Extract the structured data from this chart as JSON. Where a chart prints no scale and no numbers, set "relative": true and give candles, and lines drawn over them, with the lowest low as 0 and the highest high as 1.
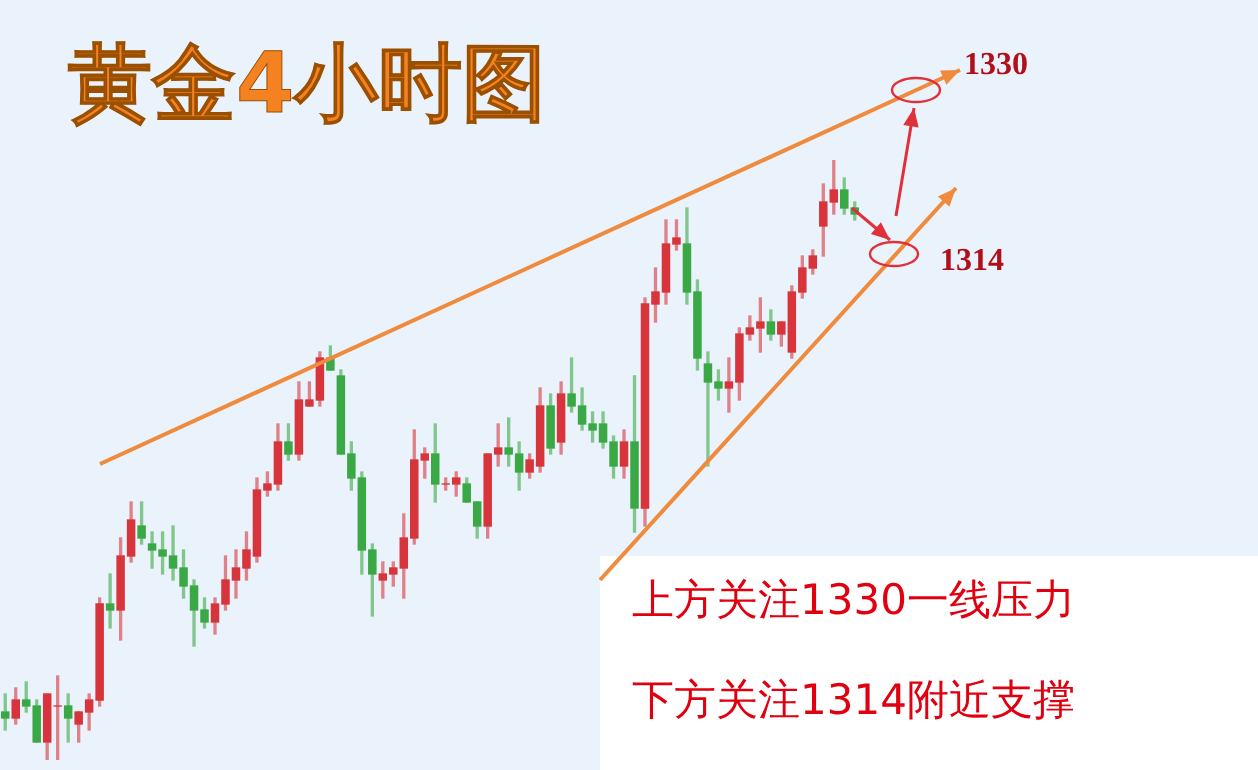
{
  "chart_data": {
    "type": "candlestick",
    "title": "黄金4小时图",
    "relative": true,
    "annotations": [
      "1330",
      "1314",
      "上方关注1330一线压力",
      "下方关注1314附近支撑"
    ],
    "categories": [
      null,
      null,
      null,
      null,
      null,
      null,
      null,
      null,
      null,
      null,
      null,
      null,
      null,
      null,
      null,
      null,
      null,
      null,
      null,
      null,
      null,
      null,
      null,
      null,
      null,
      null,
      null,
      null,
      null,
      null,
      null,
      null,
      null,
      null,
      null,
      null,
      null,
      null,
      null,
      null,
      null,
      null,
      null,
      null,
      null,
      null,
      null,
      null,
      null,
      null,
      null,
      null,
      null,
      null,
      null,
      null,
      null,
      null,
      null,
      null,
      null,
      null,
      null,
      null,
      null,
      null,
      null,
      null,
      null,
      null,
      null,
      null,
      null,
      null,
      null,
      null,
      null,
      null,
      null,
      null,
      null,
      null
    ],
    "ohlc": [
      [
        0.08,
        0.11,
        0.05,
        0.07
      ],
      [
        0.07,
        0.12,
        0.06,
        0.1
      ],
      [
        0.1,
        0.13,
        0.08,
        0.09
      ],
      [
        0.09,
        0.1,
        0.03,
        0.03
      ],
      [
        0.03,
        0.11,
        0,
        0.11
      ],
      [
        0.09,
        0.14,
        0,
        0.09
      ],
      [
        0.09,
        0.11,
        0.03,
        0.07
      ],
      [
        0.06,
        0.08,
        0.03,
        0.08
      ],
      [
        0.08,
        0.11,
        0.05,
        0.1
      ],
      [
        0.1,
        0.27,
        0.09,
        0.26
      ],
      [
        0.26,
        0.31,
        0.22,
        0.25
      ],
      [
        0.25,
        0.37,
        0.2,
        0.34
      ],
      [
        0.34,
        0.43,
        0.33,
        0.4
      ],
      [
        0.39,
        0.43,
        0.36,
        0.37
      ],
      [
        0.36,
        0.38,
        0.32,
        0.35
      ],
      [
        0.35,
        0.38,
        0.31,
        0.34
      ],
      [
        0.34,
        0.39,
        0.3,
        0.32
      ],
      [
        0.32,
        0.35,
        0.27,
        0.29
      ],
      [
        0.29,
        0.3,
        0.19,
        0.25
      ],
      [
        0.25,
        0.27,
        0.22,
        0.23
      ],
      [
        0.23,
        0.27,
        0.21,
        0.26
      ],
      [
        0.26,
        0.34,
        0.25,
        0.3
      ],
      [
        0.3,
        0.35,
        0.27,
        0.32
      ],
      [
        0.32,
        0.38,
        0.3,
        0.35
      ],
      [
        0.34,
        0.47,
        0.33,
        0.45
      ],
      [
        0.45,
        0.48,
        0.44,
        0.46
      ],
      [
        0.46,
        0.56,
        0.45,
        0.53
      ],
      [
        0.53,
        0.56,
        0.5,
        0.51
      ],
      [
        0.51,
        0.63,
        0.5,
        0.6
      ],
      [
        0.59,
        0.63,
        0.59,
        0.6
      ],
      [
        0.6,
        0.68,
        0.59,
        0.67
      ],
      [
        0.67,
        0.69,
        0.65,
        0.65
      ],
      [
        0.64,
        0.65,
        0.51,
        0.51
      ],
      [
        0.51,
        0.53,
        0.45,
        0.47
      ],
      [
        0.47,
        0.48,
        0.31,
        0.35
      ],
      [
        0.35,
        0.36,
        0.24,
        0.31
      ],
      [
        0.3,
        0.33,
        0.27,
        0.31
      ],
      [
        0.31,
        0.33,
        0.29,
        0.32
      ],
      [
        0.32,
        0.41,
        0.27,
        0.37
      ],
      [
        0.37,
        0.55,
        0.36,
        0.5
      ],
      [
        0.5,
        0.52,
        0.47,
        0.51
      ],
      [
        0.51,
        0.56,
        0.43,
        0.46
      ],
      [
        0.46,
        0.47,
        0.45,
        0.46
      ],
      [
        0.46,
        0.48,
        0.44,
        0.47
      ],
      [
        0.46,
        0.47,
        0.43,
        0.43
      ],
      [
        0.43,
        0.43,
        0.37,
        0.39
      ],
      [
        0.39,
        0.51,
        0.37,
        0.51
      ],
      [
        0.51,
        0.56,
        0.49,
        0.52
      ],
      [
        0.52,
        0.57,
        0.49,
        0.51
      ],
      [
        0.51,
        0.53,
        0.45,
        0.48
      ],
      [
        0.48,
        0.51,
        0.47,
        0.5
      ],
      [
        0.49,
        0.62,
        0.48,
        0.59
      ],
      [
        0.59,
        0.61,
        0.51,
        0.52
      ],
      [
        0.53,
        0.63,
        0.51,
        0.61
      ],
      [
        0.61,
        0.67,
        0.58,
        0.59
      ],
      [
        0.59,
        0.62,
        0.55,
        0.56
      ],
      [
        0.56,
        0.58,
        0.53,
        0.55
      ],
      [
        0.56,
        0.58,
        0.52,
        0.53
      ],
      [
        0.53,
        0.54,
        0.47,
        0.49
      ],
      [
        0.49,
        0.55,
        0.47,
        0.53
      ],
      [
        0.53,
        0.64,
        0.38,
        0.42
      ],
      [
        0.42,
        0.77,
        0.39,
        0.76
      ],
      [
        0.76,
        0.82,
        0.73,
        0.78
      ],
      [
        0.78,
        0.9,
        0.76,
        0.86
      ],
      [
        0.86,
        0.9,
        0.85,
        0.87
      ],
      [
        0.86,
        0.92,
        0.76,
        0.78
      ],
      [
        0.78,
        0.8,
        0.65,
        0.67
      ],
      [
        0.66,
        0.68,
        0.49,
        0.63
      ],
      [
        0.63,
        0.65,
        0.6,
        0.62
      ],
      [
        0.62,
        0.67,
        0.58,
        0.63
      ],
      [
        0.63,
        0.72,
        0.6,
        0.71
      ],
      [
        0.71,
        0.74,
        0.7,
        0.72
      ],
      [
        0.72,
        0.77,
        0.68,
        0.73
      ],
      [
        0.73,
        0.75,
        0.7,
        0.71
      ],
      [
        0.71,
        0.73,
        0.69,
        0.73
      ],
      [
        0.68,
        0.79,
        0.67,
        0.78
      ],
      [
        0.78,
        0.84,
        0.77,
        0.82
      ],
      [
        0.82,
        0.85,
        0.81,
        0.84
      ],
      [
        0.89,
        0.96,
        0.84,
        0.93
      ],
      [
        0.93,
        1.0,
        0.91,
        0.95
      ],
      [
        0.95,
        0.97,
        0.91,
        0.92
      ],
      [
        0.92,
        0.93,
        0.9,
        0.91
      ]
    ]
  }
}
